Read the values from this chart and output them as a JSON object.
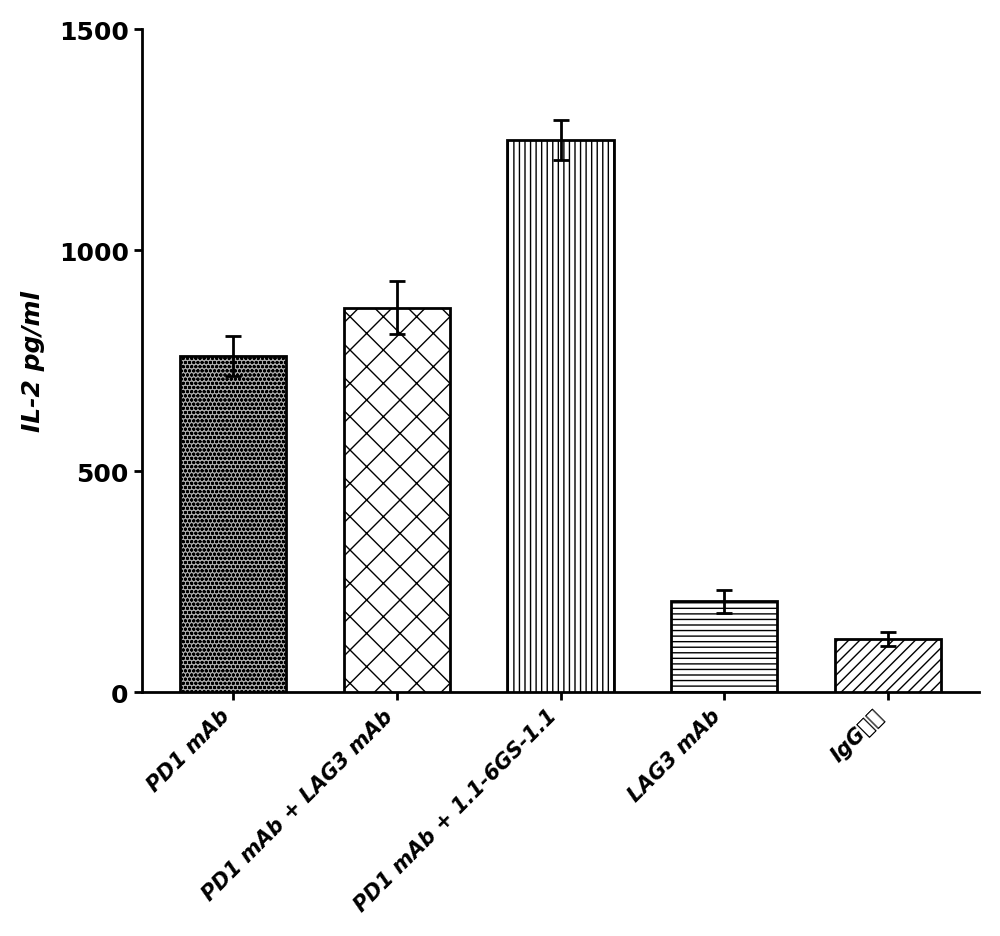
{
  "categories": [
    "PD1 mAb",
    "PD1 mAb + LAG3 mAb",
    "PD1 mAb + 1.1-6GS-1.1",
    "LAG3 mAb",
    "IgG对照"
  ],
  "values": [
    760,
    870,
    1250,
    205,
    120
  ],
  "errors": [
    45,
    60,
    45,
    25,
    15
  ],
  "ylabel": "IL-2 pg/ml",
  "ylim": [
    0,
    1500
  ],
  "yticks": [
    0,
    500,
    1000,
    1500
  ],
  "background_color": "#ffffff",
  "bar_edge_color": "#000000",
  "hatch_patterns": [
    "oooo",
    "X",
    "|||",
    "---",
    "///"
  ],
  "bar_facecolor": "#cccccc",
  "bar_facecolors": [
    "#aaaaaa",
    "#ffffff",
    "#ffffff",
    "#ffffff",
    "#ffffff"
  ],
  "label_fontsize": 18,
  "tick_fontsize": 18,
  "axis_linewidth": 2.0
}
